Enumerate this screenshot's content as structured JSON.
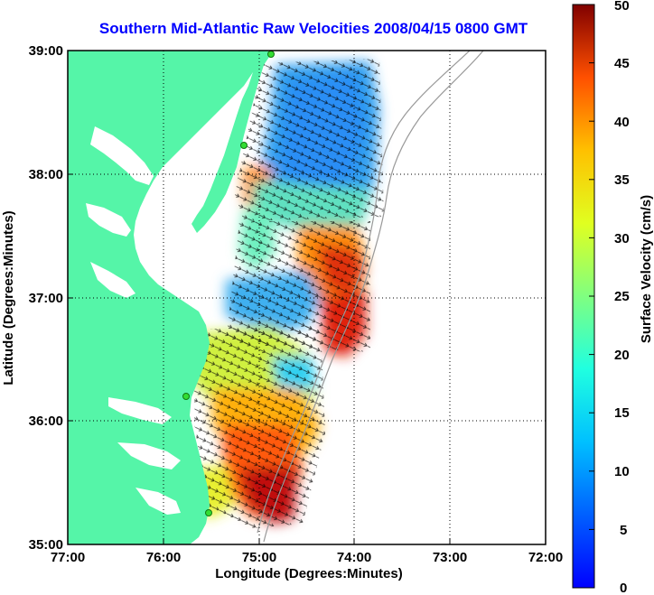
{
  "title": "Southern Mid-Atlantic Raw Velocities 2008/04/15 0800 GMT",
  "x_axis": {
    "label": "Longitude (Degrees:Minutes)",
    "ticks": [
      "77:00",
      "76:00",
      "75:00",
      "74:00",
      "73:00",
      "72:00"
    ]
  },
  "y_axis": {
    "label": "Latitude (Degrees:Minutes)",
    "ticks": [
      "39:00",
      "38:00",
      "37:00",
      "36:00",
      "35:00"
    ]
  },
  "colorbar": {
    "label": "Surface Velocity (cm/s)",
    "ticks": [
      "50",
      "45",
      "40",
      "35",
      "30",
      "25",
      "20",
      "15",
      "10",
      "5",
      "0"
    ],
    "min": 0,
    "max": 50,
    "colormap": "jet"
  },
  "colors": {
    "land": "#55f5a8",
    "title": "#0000ff",
    "grid": "#000000",
    "bathymetry": "#999999",
    "station": "#33dd33"
  },
  "map": {
    "lon_range": [
      -77,
      -72
    ],
    "lat_range": [
      35,
      39
    ],
    "grid": true
  }
}
